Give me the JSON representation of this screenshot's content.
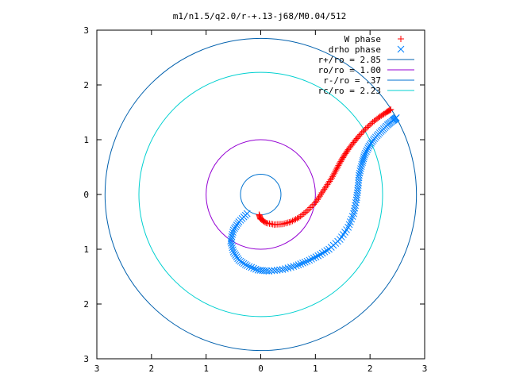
{
  "chart_data": {
    "type": "scatter",
    "title": "m1/n1.5/q2.0/r-+.13-j68/M0.04/512",
    "xlabel": "",
    "ylabel": "",
    "xlim": [
      -3,
      3
    ],
    "ylim": [
      -3,
      3
    ],
    "x_ticks": [
      -3,
      -2,
      -1,
      0,
      1,
      2,
      3
    ],
    "y_ticks": [
      -3,
      -2,
      -1,
      0,
      1,
      2,
      3
    ],
    "x_tick_labels": [
      "3",
      "2",
      "1",
      "0",
      "1",
      "2",
      "3"
    ],
    "y_tick_labels": [
      "3",
      "2",
      "1",
      "0",
      "1",
      "2",
      "3"
    ],
    "grid": false,
    "legend_position": "top-right",
    "series": [
      {
        "name": "W phase",
        "kind": "points",
        "marker": "+",
        "color": "#ff0000",
        "x": [
          -0.03,
          0.0,
          0.1,
          0.25,
          0.4,
          0.55,
          0.7,
          0.85,
          1.0,
          1.1,
          1.2,
          1.3,
          1.38,
          1.45,
          1.52,
          1.6,
          1.7,
          1.8,
          1.92,
          2.05,
          2.18,
          2.3,
          2.38
        ],
        "y": [
          -0.37,
          -0.45,
          -0.52,
          -0.55,
          -0.54,
          -0.5,
          -0.42,
          -0.3,
          -0.15,
          0.0,
          0.15,
          0.3,
          0.45,
          0.58,
          0.7,
          0.82,
          0.95,
          1.07,
          1.2,
          1.32,
          1.42,
          1.5,
          1.55
        ]
      },
      {
        "name": "drho phase",
        "kind": "points",
        "marker": "x",
        "color": "#0080ff",
        "x": [
          -0.25,
          -0.4,
          -0.5,
          -0.55,
          -0.5,
          -0.4,
          -0.25,
          -0.05,
          0.15,
          0.4,
          0.65,
          0.85,
          1.05,
          1.25,
          1.45,
          1.6,
          1.7,
          1.75,
          1.78,
          1.8,
          1.85,
          1.9,
          1.98,
          2.08,
          2.2,
          2.32,
          2.42,
          2.48
        ],
        "y": [
          -0.35,
          -0.5,
          -0.65,
          -0.85,
          -1.05,
          -1.2,
          -1.3,
          -1.38,
          -1.4,
          -1.37,
          -1.3,
          -1.22,
          -1.12,
          -1.0,
          -0.82,
          -0.6,
          -0.35,
          -0.1,
          0.12,
          0.35,
          0.55,
          0.72,
          0.88,
          1.02,
          1.15,
          1.27,
          1.35,
          1.4
        ]
      },
      {
        "name": "r+/ro = 2.85",
        "kind": "circle",
        "radius": 2.85,
        "color": "#0060ad"
      },
      {
        "name": "ro/ro = 1.00",
        "kind": "circle",
        "radius": 1.0,
        "color": "#9400d3"
      },
      {
        "name": "r-/ro = .37",
        "kind": "circle",
        "radius": 0.37,
        "color": "#0072d0"
      },
      {
        "name": "rc/ro = 2.23",
        "kind": "circle",
        "radius": 2.23,
        "color": "#00d0d0"
      }
    ]
  }
}
